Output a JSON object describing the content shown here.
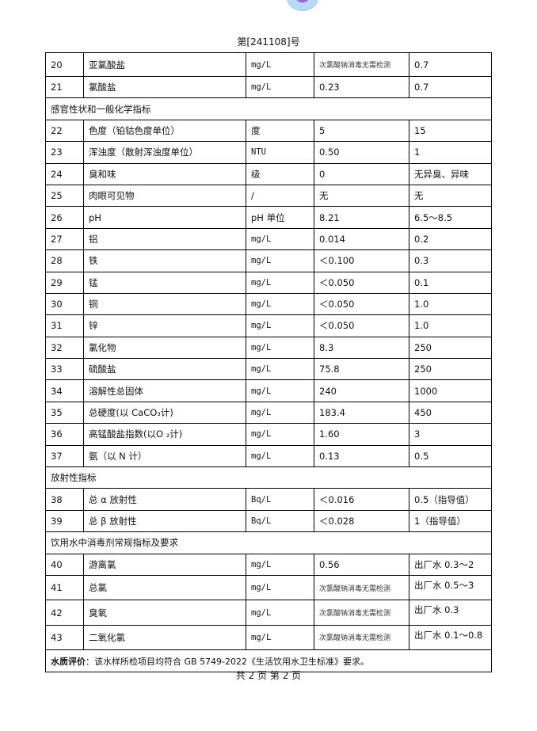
{
  "header": {
    "report_number": "第[241108]号"
  },
  "rows": [
    {
      "type": "item",
      "no": "20",
      "name": "亚氯酸盐",
      "unit": "mg/L",
      "result": "次氯酸钠消毒无需检测",
      "limit": "0.7"
    },
    {
      "type": "item",
      "no": "21",
      "name": "氯酸盐",
      "unit": "mg/L",
      "result": "0.23",
      "limit": "0.7"
    },
    {
      "type": "section",
      "title": "感官性状和一般化学指标"
    },
    {
      "type": "item",
      "no": "22",
      "name": "色度（铂钴色度单位）",
      "unit": "度",
      "result": "5",
      "limit": "15"
    },
    {
      "type": "item",
      "no": "23",
      "name": "浑浊度（散射浑浊度单位）",
      "unit": "NTU",
      "result": "0.50",
      "limit": "1"
    },
    {
      "type": "item",
      "no": "24",
      "name": "臭和味",
      "unit": "级",
      "result": "0",
      "limit": "无异臭、异味"
    },
    {
      "type": "item",
      "no": "25",
      "name": "肉眼可见物",
      "unit": "/",
      "result": "无",
      "limit": "无"
    },
    {
      "type": "item",
      "no": "26",
      "name": "pH",
      "unit": "pH 单位",
      "result": "8.21",
      "limit": "6.5～8.5"
    },
    {
      "type": "item",
      "no": "27",
      "name": "铝",
      "unit": "mg/L",
      "result": "0.014",
      "limit": "0.2"
    },
    {
      "type": "item",
      "no": "28",
      "name": "铁",
      "unit": "mg/L",
      "result": "＜0.100",
      "limit": "0.3"
    },
    {
      "type": "item",
      "no": "29",
      "name": "锰",
      "unit": "mg/L",
      "result": "＜0.050",
      "limit": "0.1"
    },
    {
      "type": "item",
      "no": "30",
      "name": "铜",
      "unit": "mg/L",
      "result": "＜0.050",
      "limit": "1.0"
    },
    {
      "type": "item",
      "no": "31",
      "name": "锌",
      "unit": "mg/L",
      "result": "＜0.050",
      "limit": "1.0"
    },
    {
      "type": "item",
      "no": "32",
      "name": "氯化物",
      "unit": "mg/L",
      "result": "8.3",
      "limit": "250"
    },
    {
      "type": "item",
      "no": "33",
      "name": "硫酸盐",
      "unit": "mg/L",
      "result": "75.8",
      "limit": "250"
    },
    {
      "type": "item",
      "no": "34",
      "name": "溶解性总固体",
      "unit": "mg/L",
      "result": "240",
      "limit": "1000"
    },
    {
      "type": "item",
      "no": "35",
      "name": "总硬度(以 CaCO₃计)",
      "unit": "mg/L",
      "result": "183.4",
      "limit": "450"
    },
    {
      "type": "item",
      "no": "36",
      "name": "高锰酸盐指数(以O ₂计)",
      "unit": "mg/L",
      "result": "1.60",
      "limit": "3"
    },
    {
      "type": "item",
      "no": "37",
      "name": "氨（以 N 计）",
      "unit": "mg/L",
      "result": "0.13",
      "limit": "0.5"
    },
    {
      "type": "section",
      "title": "放射性指标"
    },
    {
      "type": "item",
      "no": "38",
      "name": "总 α 放射性",
      "unit": "Bq/L",
      "result": "＜0.016",
      "limit": "0.5（指导值）"
    },
    {
      "type": "item",
      "no": "39",
      "name": "总 β 放射性",
      "unit": "Bq/L",
      "result": "＜0.028",
      "limit": "1（指导值）"
    },
    {
      "type": "section",
      "title": "饮用水中消毒剂常规指标及要求"
    },
    {
      "type": "item",
      "no": "40",
      "name": "游离氯",
      "unit": "mg/L",
      "result": "0.56",
      "limit": "出厂水 0.3～2"
    },
    {
      "type": "item",
      "no": "41",
      "name": "总氯",
      "unit": "mg/L",
      "result": "次氯酸钠消毒无需检测",
      "limit": "出厂水 0.5～3"
    },
    {
      "type": "item",
      "no": "42",
      "name": "臭氧",
      "unit": "mg/L",
      "result": "次氯酸钠消毒无需检测",
      "limit": "出厂水 0.3"
    },
    {
      "type": "item",
      "no": "43",
      "name": "二氧化氯",
      "unit": "mg/L",
      "result": "次氯酸钠消毒无需检测",
      "limit": "出厂水 0.1～0.8"
    }
  ],
  "evaluation": {
    "label": "水质评价",
    "text": "：该水样所检项目均符合 GB  5749-2022《生活饮用水卫生标准》要求。"
  },
  "footer": {
    "pages": "共 2 页  第 2 页"
  }
}
